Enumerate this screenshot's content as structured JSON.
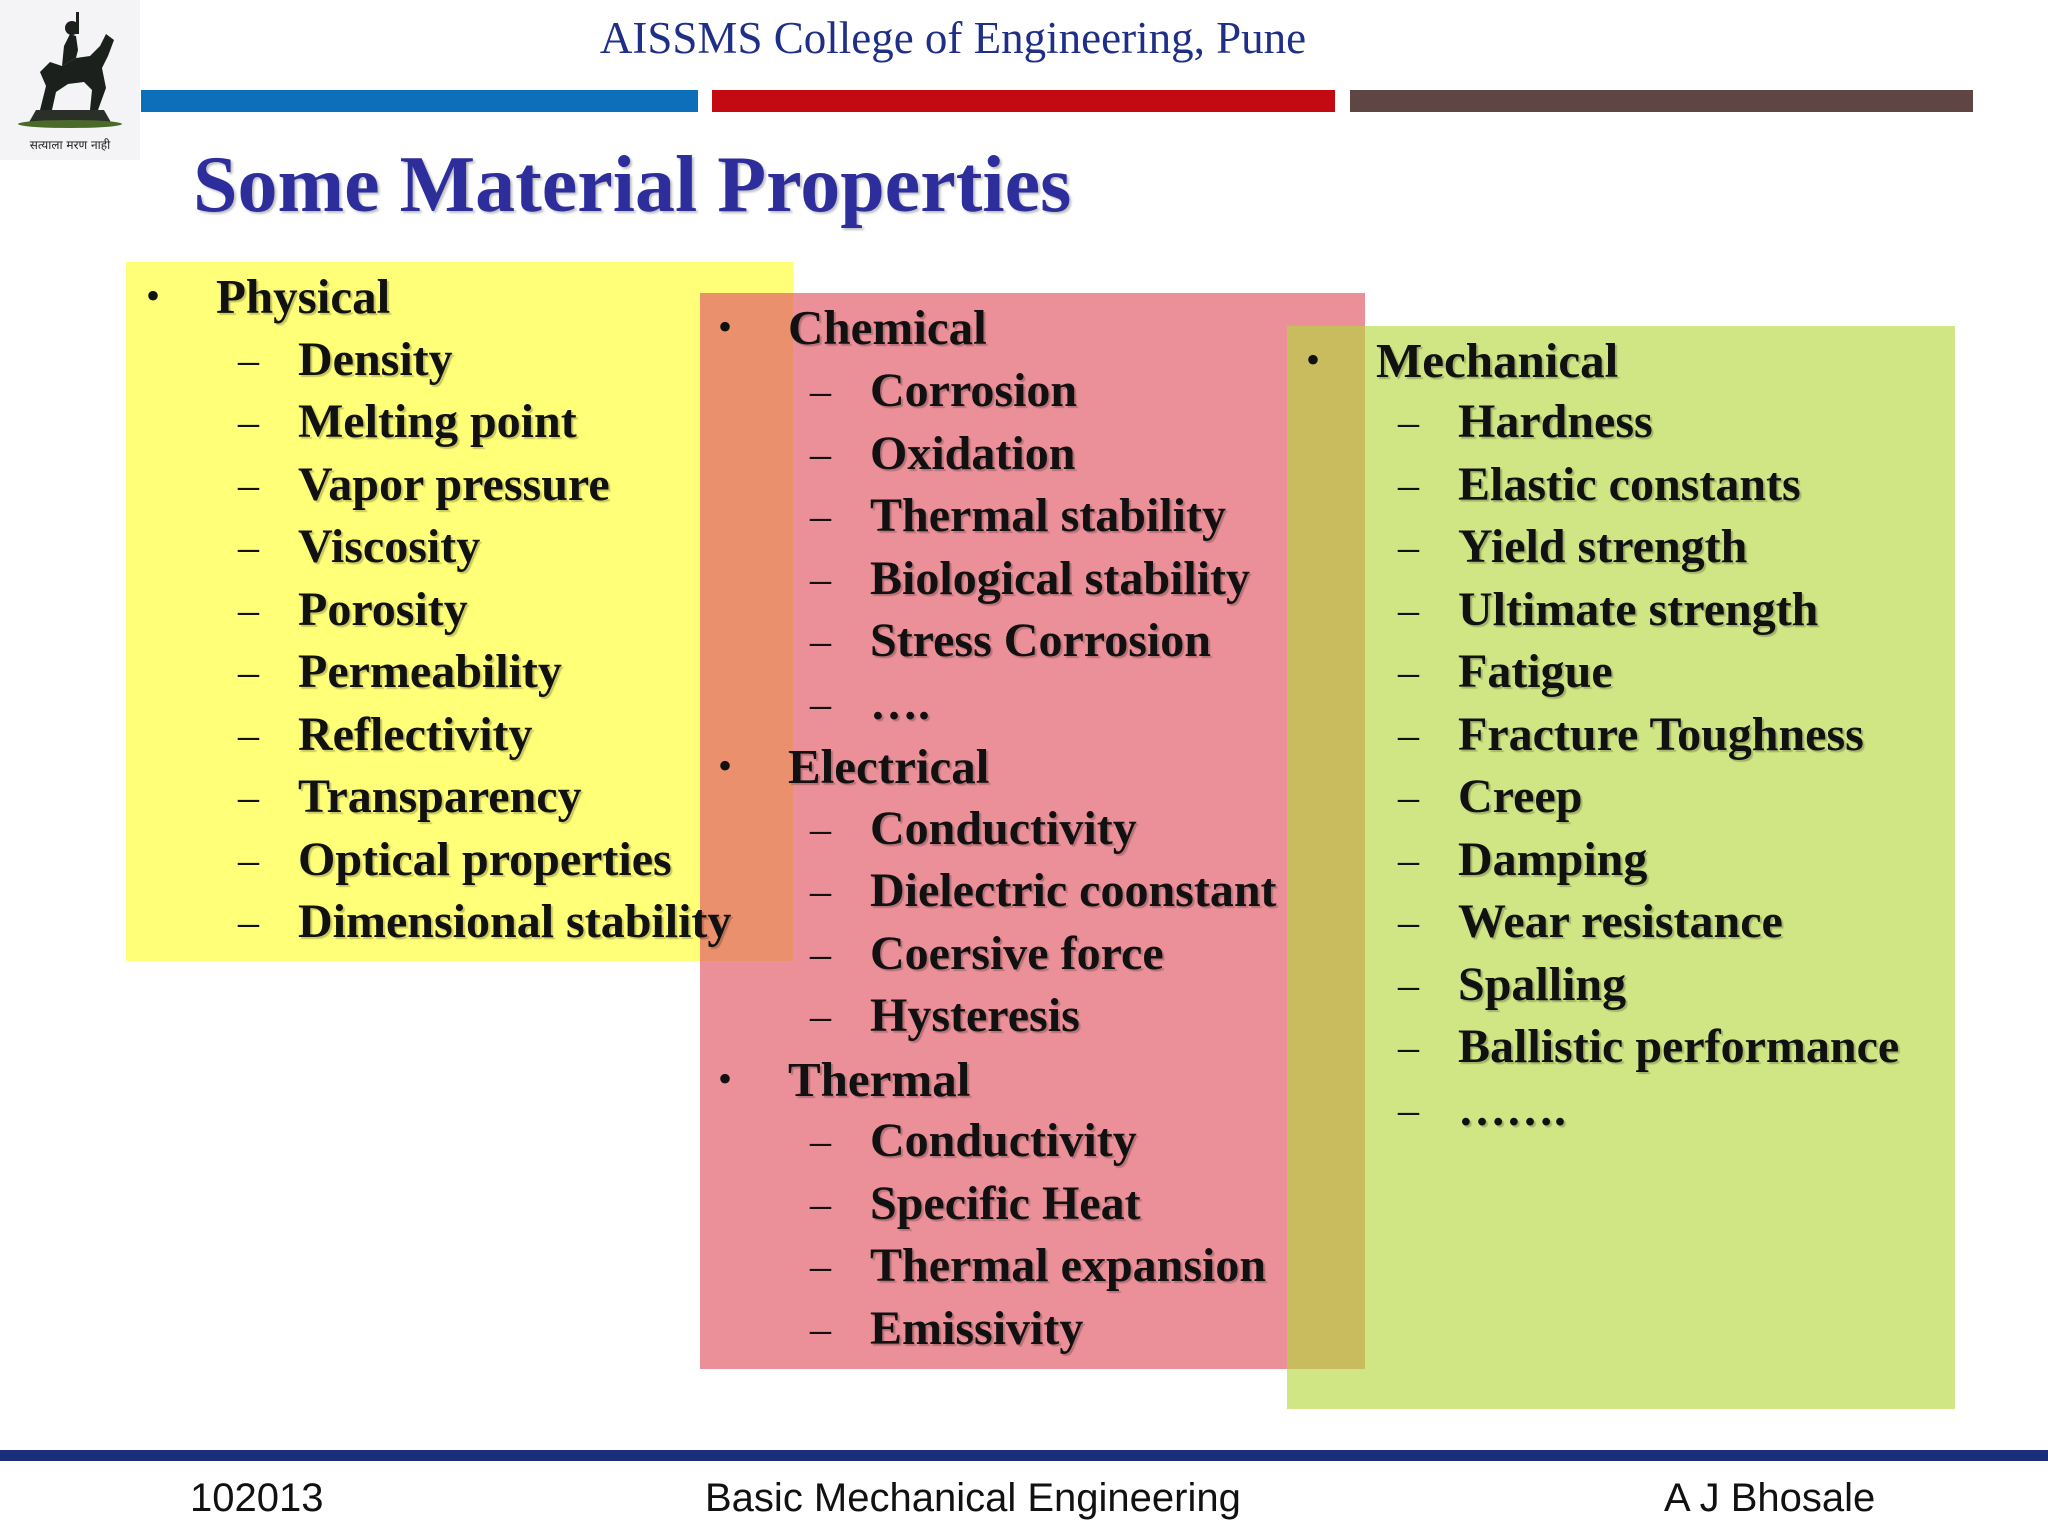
{
  "header": {
    "college_name": "AISSMS College of Engineering, Pune",
    "logo_motto": "सत्याला मरण नाही",
    "colors": {
      "blue": "#0d6fba",
      "red": "#c30a12",
      "brown": "#5f4645",
      "title": "#2d2e9b"
    }
  },
  "slide": {
    "title": "Some Material Properties",
    "groups": [
      {
        "name": "Physical",
        "items": [
          "Density",
          "Melting point",
          "Vapor pressure",
          "Viscosity",
          "Porosity",
          "Permeability",
          "Reflectivity",
          "Transparency",
          "Optical properties",
          "Dimensional stability"
        ]
      },
      {
        "name": "Chemical",
        "items": [
          "Corrosion",
          "Oxidation",
          "Thermal stability",
          "Biological stability",
          "Stress Corrosion",
          "…."
        ]
      },
      {
        "name": "Electrical",
        "items": [
          "Conductivity",
          "Dielectric coonstant",
          "Coersive force",
          "Hysteresis"
        ]
      },
      {
        "name": "Thermal",
        "items": [
          "Conductivity",
          "Specific Heat",
          "Thermal expansion",
          "Emissivity"
        ]
      },
      {
        "name": "Mechanical",
        "items": [
          "Hardness",
          "Elastic constants",
          "Yield strength",
          "Ultimate strength",
          "Fatigue",
          "Fracture Toughness",
          "Creep",
          "Damping",
          "Wear resistance",
          "Spalling",
          "Ballistic performance",
          "……."
        ]
      }
    ],
    "box_colors": {
      "physical": "#ffff78",
      "chemical_electrical_thermal": "#e25c68",
      "mechanical": "#b3d63a"
    }
  },
  "footer": {
    "left": "102013",
    "center": "Basic Mechanical Engineering",
    "right": "A J Bhosale"
  }
}
